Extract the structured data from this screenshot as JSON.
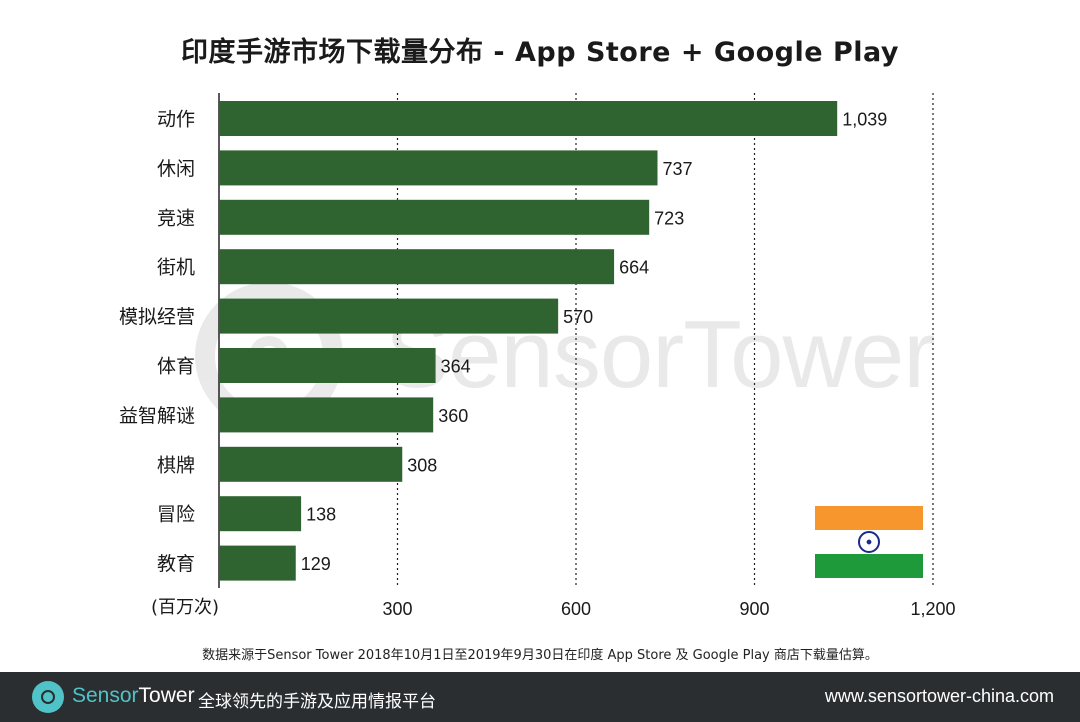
{
  "chart_data": {
    "type": "bar",
    "orientation": "horizontal",
    "title": "印度手游市场下载量分布 - App Store + Google Play",
    "unit_label": "(百万次)",
    "categories": [
      "动作",
      "休闲",
      "竞速",
      "街机",
      "模拟经营",
      "体育",
      "益智解谜",
      "棋牌",
      "冒险",
      "教育"
    ],
    "values": [
      1039,
      737,
      723,
      664,
      570,
      364,
      360,
      308,
      138,
      129
    ],
    "data_labels": [
      "1,039",
      "737",
      "723",
      "664",
      "570",
      "364",
      "360",
      "308",
      "138",
      "129"
    ],
    "xlim": [
      0,
      1200
    ],
    "xticks": [
      300,
      600,
      900,
      1200
    ],
    "xtick_labels": [
      "300",
      "600",
      "900",
      "1,200"
    ],
    "grid": "vertical dotted",
    "bar_color": "#2f6431"
  },
  "source_note": "数据来源于Sensor Tower 2018年10月1日至2019年9月30日在印度 App Store 及 Google Play 商店下载量估算。",
  "watermark": {
    "text": "SensorTower"
  },
  "flag": {
    "icon": "india-flag-icon",
    "colors": [
      "#f7962c",
      "#ffffff",
      "#1f9a3a"
    ]
  },
  "footer": {
    "brand_part1": "Sensor",
    "brand_part2": "Tower",
    "slogan": "全球领先的手游及应用情报平台",
    "url": "www.sensortower-china.com",
    "brand_color": "#4fc3c8",
    "background": "#2b2e31"
  }
}
